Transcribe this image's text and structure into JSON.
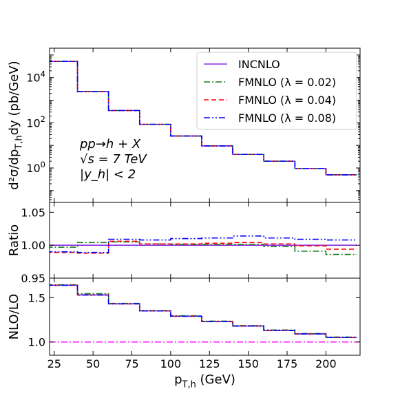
{
  "chart_data": [
    {
      "type": "line",
      "panel": "main",
      "ylabel": "d²σ/dp_{T,h}dy (pb/GeV)",
      "yscale": "log",
      "ylim": [
        0.03,
        200000
      ],
      "xlim": [
        22,
        222
      ],
      "bin_edges": [
        20,
        40,
        60,
        80,
        100,
        120,
        140,
        160,
        180,
        200,
        220
      ],
      "yticks": [
        1,
        100,
        10000
      ],
      "ytick_labels": [
        "10^0",
        "10^2",
        "10^4"
      ],
      "series": [
        {
          "name": "INCNLO",
          "color": "#8a2be2",
          "dash": "solid",
          "values": [
            52000,
            2400,
            350,
            85,
            26,
            9.5,
            4.0,
            2.0,
            0.95,
            0.5
          ]
        },
        {
          "name": "FMNLO (λ = 0.02)",
          "color": "#1a7a1a",
          "dash": "dashdot",
          "values": [
            52000,
            2400,
            350,
            85,
            26,
            9.5,
            4.0,
            2.0,
            0.95,
            0.5
          ]
        },
        {
          "name": "FMNLO (λ = 0.04)",
          "color": "#ff0000",
          "dash": "dashed",
          "values": [
            52000,
            2400,
            350,
            85,
            26,
            9.5,
            4.0,
            2.0,
            0.95,
            0.5
          ]
        },
        {
          "name": "FMNLO (λ = 0.08)",
          "color": "#0000ff",
          "dash": "dashdotdot",
          "values": [
            52000,
            2400,
            350,
            85,
            26,
            9.5,
            4.0,
            2.0,
            0.95,
            0.5
          ]
        }
      ],
      "annotations": [
        "pp→h + X",
        "√s = 7 TeV",
        "|y_h| < 2"
      ],
      "legend": "upper right"
    },
    {
      "type": "line",
      "panel": "ratio",
      "ylabel": "Ratio",
      "ylim": [
        0.95,
        1.065
      ],
      "xlim": [
        22,
        222
      ],
      "bin_edges": [
        20,
        40,
        60,
        80,
        100,
        120,
        140,
        160,
        180,
        200,
        220
      ],
      "yticks": [
        0.95,
        1.0,
        1.05
      ],
      "ytick_labels": [
        "0.95",
        "1.00",
        "1.05"
      ],
      "series": [
        {
          "name": "INCNLO",
          "color": "#8a2be2",
          "dash": "solid",
          "values": [
            1.0,
            1.0,
            1.0,
            1.0,
            1.0,
            1.0,
            1.0,
            1.0,
            1.0,
            1.0
          ]
        },
        {
          "name": "FMNLO (λ = 0.02)",
          "color": "#1a7a1a",
          "dash": "dashdot",
          "values": [
            0.997,
            1.004,
            1.005,
            1.002,
            1.001,
            1.001,
            1.001,
            0.998,
            0.991,
            0.986
          ]
        },
        {
          "name": "FMNLO (λ = 0.04)",
          "color": "#ff0000",
          "dash": "dashed",
          "values": [
            0.989,
            0.988,
            1.006,
            1.002,
            1.002,
            1.003,
            1.004,
            1.002,
            0.999,
            0.994
          ]
        },
        {
          "name": "FMNLO (λ = 0.08)",
          "color": "#0000ff",
          "dash": "dashdotdot",
          "values": [
            0.99,
            0.989,
            1.009,
            1.008,
            1.01,
            1.011,
            1.014,
            1.011,
            1.009,
            1.008
          ]
        }
      ]
    },
    {
      "type": "line",
      "panel": "kfactor",
      "ylabel": "NLO/LO",
      "ylim": [
        0.85,
        1.72
      ],
      "xlim": [
        22,
        222
      ],
      "bin_edges": [
        20,
        40,
        60,
        80,
        100,
        120,
        140,
        160,
        180,
        200,
        220
      ],
      "yticks": [
        1.0,
        1.5
      ],
      "ytick_labels": [
        "1.0",
        "1.5"
      ],
      "xticks": [
        25,
        50,
        75,
        100,
        125,
        150,
        175,
        200
      ],
      "xtick_labels": [
        "25",
        "50",
        "75",
        "100",
        "125",
        "150",
        "175",
        "200"
      ],
      "xlabel": "p_{T,h} (GeV)",
      "reference_line": {
        "value": 1.0,
        "color": "#ff00ff",
        "dash": "dashdot"
      },
      "series": [
        {
          "name": "INCNLO",
          "color": "#8a2be2",
          "dash": "solid",
          "values": [
            1.64,
            1.53,
            1.43,
            1.35,
            1.29,
            1.23,
            1.18,
            1.13,
            1.09,
            1.05
          ]
        },
        {
          "name": "FMNLO (λ = 0.02)",
          "color": "#1a7a1a",
          "dash": "dashdot",
          "values": [
            1.645,
            1.545,
            1.435,
            1.355,
            1.295,
            1.235,
            1.185,
            1.135,
            1.095,
            1.055
          ]
        },
        {
          "name": "FMNLO (λ = 0.04)",
          "color": "#ff0000",
          "dash": "dashed",
          "values": [
            1.64,
            1.53,
            1.43,
            1.35,
            1.29,
            1.23,
            1.18,
            1.13,
            1.09,
            1.05
          ]
        },
        {
          "name": "FMNLO (λ = 0.08)",
          "color": "#0000ff",
          "dash": "dashdotdot",
          "values": [
            1.64,
            1.53,
            1.43,
            1.35,
            1.29,
            1.23,
            1.18,
            1.13,
            1.09,
            1.05
          ]
        }
      ]
    }
  ]
}
